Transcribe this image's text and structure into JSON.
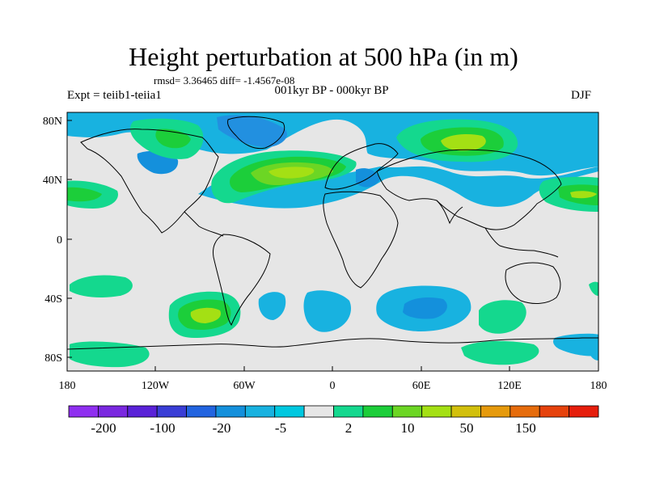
{
  "title": "Height perturbation at 500 hPa (in m)",
  "stats": "rmsd= 3.36465 diff= -1.4567e-08",
  "expt": "Expt = teiib1-teiia1",
  "period": "001kyr BP - 000kyr BP",
  "season": "DJF",
  "axes": {
    "y_ticks": [
      "80N",
      "40N",
      "0",
      "40S",
      "80S"
    ],
    "x_ticks": [
      "180",
      "120W",
      "60W",
      "0",
      "60E",
      "120E",
      "180"
    ]
  },
  "colorbar": {
    "colors": [
      "#8f2ff0",
      "#7a28e0",
      "#5a22d8",
      "#3a3ed6",
      "#2264e0",
      "#1490dc",
      "#18b2e0",
      "#00c8e0",
      "#e6e6e6",
      "#14d88e",
      "#1cce3a",
      "#6cd624",
      "#a4e014",
      "#d2c00c",
      "#e69a0c",
      "#e66c0c",
      "#e6420c",
      "#e61e0c"
    ],
    "labels": [
      "-200",
      "-100",
      "-20",
      "-5",
      "2",
      "10",
      "50",
      "150"
    ]
  }
}
